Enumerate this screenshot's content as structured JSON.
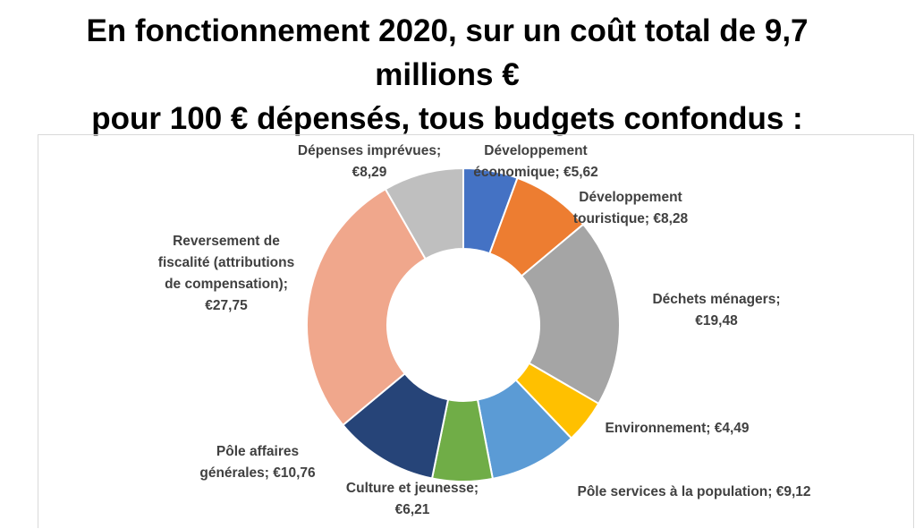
{
  "title_lines": [
    "En fonctionnement 2020, sur un coût total de 9,7",
    "millions €",
    "pour 100 € dépensés, tous budgets confondus :"
  ],
  "chart_data": {
    "type": "pie",
    "title": "",
    "legend": "none",
    "slices": [
      {
        "name": "Développement économique",
        "value": 5.62,
        "value_label": "€5,62",
        "color": "#4472C4",
        "label_lines": [
          "Développement",
          "économique; €5,62"
        ]
      },
      {
        "name": "Développement touristique",
        "value": 8.28,
        "value_label": "€8,28",
        "color": "#ED7D31",
        "label_lines": [
          "Développement",
          "touristique; €8,28"
        ]
      },
      {
        "name": "Déchets ménagers",
        "value": 19.48,
        "value_label": "€19,48",
        "color": "#A5A5A5",
        "label_lines": [
          "Déchets ménagers;",
          "€19,48"
        ]
      },
      {
        "name": "Environnement",
        "value": 4.49,
        "value_label": "€4,49",
        "color": "#FFC000",
        "label_lines": [
          "Environnement; €4,49"
        ]
      },
      {
        "name": "Pôle services à la population",
        "value": 9.12,
        "value_label": "€9,12",
        "color": "#5B9BD5",
        "label_lines": [
          "Pôle services à la population; €9,12"
        ]
      },
      {
        "name": "Culture et jeunesse",
        "value": 6.21,
        "value_label": "€6,21",
        "color": "#70AD47",
        "label_lines": [
          "Culture et jeunesse;",
          "€6,21"
        ]
      },
      {
        "name": "Pôle affaires générales",
        "value": 10.76,
        "value_label": "€10,76",
        "color": "#264478",
        "label_lines": [
          "Pôle affaires",
          "générales; €10,76"
        ]
      },
      {
        "name": "Reversement de fiscalité (attributions de compensation)",
        "value": 27.75,
        "value_label": "€27,75",
        "color": "#F0A78C",
        "label_lines": [
          "Reversement de",
          "fiscalité (attributions",
          "de compensation);",
          "€27,75"
        ]
      },
      {
        "name": "Dépenses imprévues",
        "value": 8.29,
        "value_label": "€8,29",
        "color": "#BFBFBF",
        "label_lines": [
          "Dépenses imprévues;",
          "€8,29"
        ]
      }
    ]
  }
}
